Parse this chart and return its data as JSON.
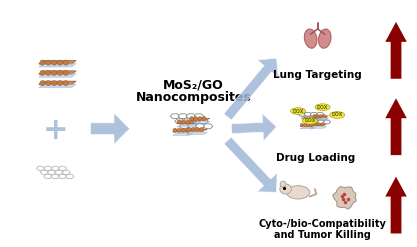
{
  "title": "",
  "bg_color": "#ffffff",
  "mos2_label": "MoS₂/GO",
  "nano_label": "Nanocomposites",
  "lung_label": "Lung Targeting",
  "drug_label": "Drug Loading",
  "cyto_label": "Cyto-/bio-Compatibility\nand Tumor Killing",
  "arrow_blue": "#a0b8d8",
  "arrow_red": "#8b0000",
  "plus_color": "#a0b8d8",
  "mos2_brown": "#c87941",
  "mos2_blue": "#b0c8e8",
  "graphene_gray": "#c0c0c0",
  "dox_yellow": "#f5e642",
  "dox_text": "#666600",
  "lung_color": "#c87070",
  "mouse_color": "#e8d8d0",
  "label_fontsize": 7.5,
  "title_fontsize": 9,
  "figsize": [
    4.17,
    2.47
  ],
  "dpi": 100
}
